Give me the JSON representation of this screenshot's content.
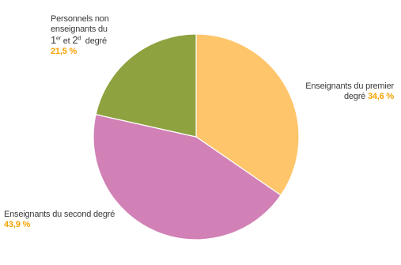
{
  "chart_data": {
    "type": "pie",
    "start_angle_deg": 0,
    "direction": "clockwise",
    "slices": [
      {
        "label": "Enseignants du premier degré",
        "value": 34.6,
        "value_label": "34,6 %",
        "color": "#FFC56A"
      },
      {
        "label": "Enseignants du second degré",
        "value": 43.9,
        "value_label": "43,9 %",
        "color": "#D181B6"
      },
      {
        "label": "Personnels non enseignants du 1er et 2d degré",
        "value": 21.5,
        "value_label": "21,5 %",
        "color": "#8EA23F"
      }
    ]
  },
  "labels": {
    "premier": {
      "line1": "Enseignants du premier",
      "line2": "degré",
      "pct": "34,6 %"
    },
    "second": {
      "line1": "Enseignants du second degré",
      "pct": "43,9 %"
    },
    "non_ens": {
      "line1": "Personnels non",
      "line2": "enseignants du",
      "num1": "1",
      "sup1": "er",
      "mid": " et ",
      "num2": "2",
      "sup2": "d",
      "end": "  degré",
      "pct": "21,5 %"
    }
  }
}
